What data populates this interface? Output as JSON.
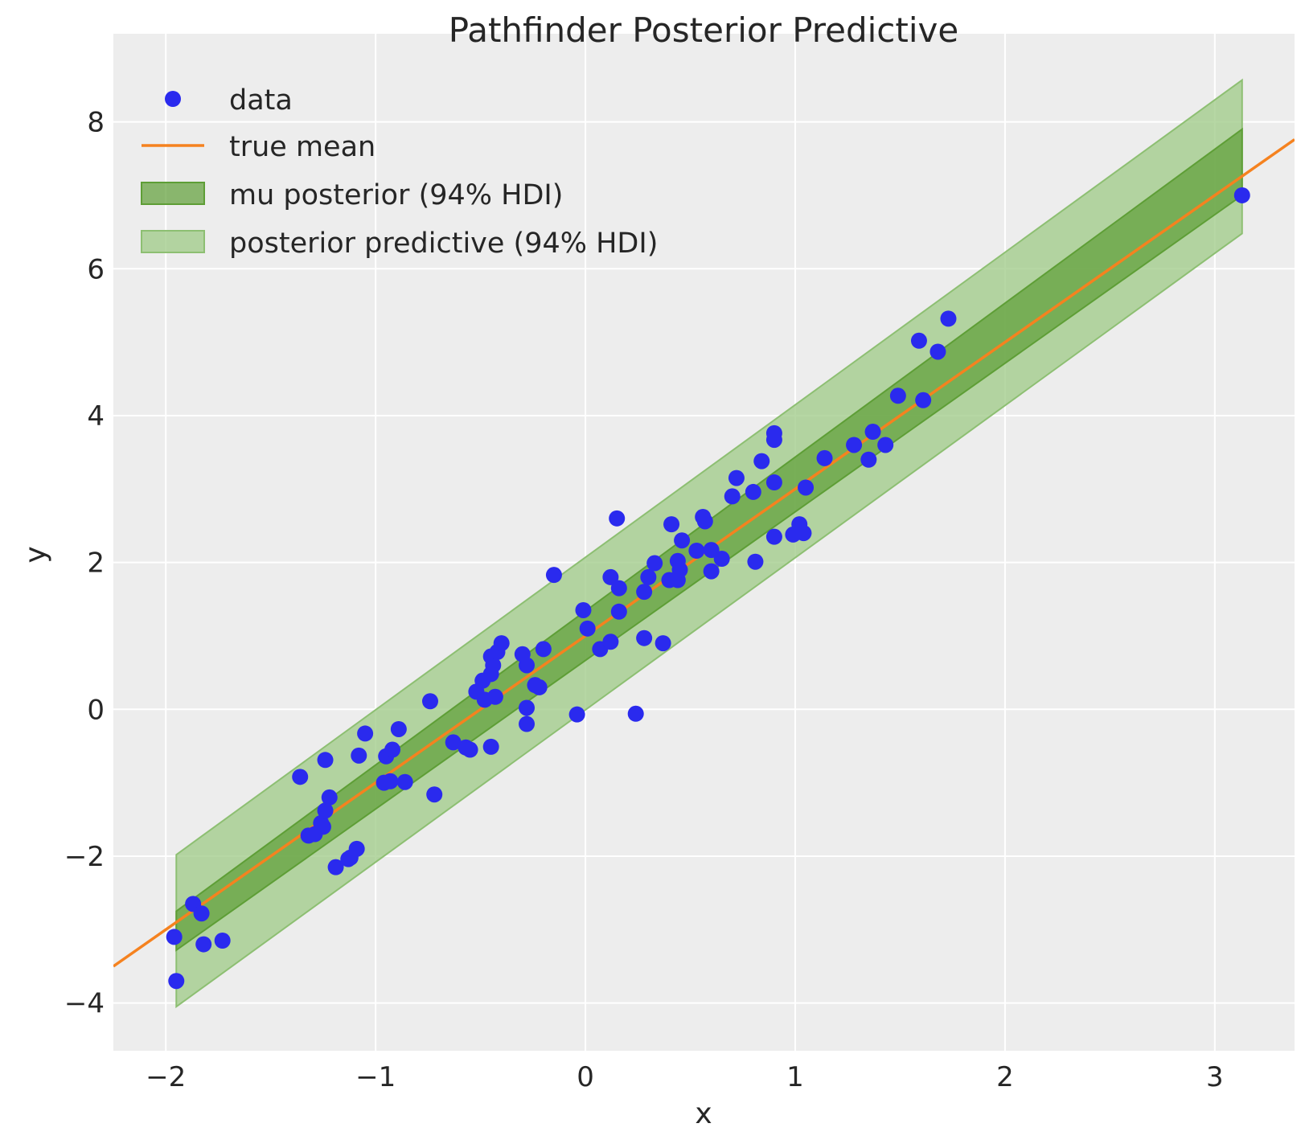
{
  "chart_data": {
    "type": "scatter",
    "title": "Pathfinder Posterior Predictive",
    "xlabel": "x",
    "ylabel": "y",
    "xlim": [
      -2.25,
      3.38
    ],
    "ylim": [
      -4.65,
      9.2
    ],
    "xticks": [
      -2,
      -1,
      0,
      1,
      2,
      3
    ],
    "yticks": [
      -4,
      -2,
      0,
      2,
      4,
      6,
      8
    ],
    "x_tick_labels": [
      "−2",
      "−1",
      "0",
      "1",
      "2",
      "3"
    ],
    "y_tick_labels": [
      "−4",
      "−2",
      "0",
      "2",
      "4",
      "6",
      "8"
    ],
    "grid": true,
    "legend_position": "top-left",
    "colors": {
      "background": "#EDEDED",
      "grid": "#FFFFFF",
      "data": "#2A2AEE",
      "true_mean": "#F5821F",
      "mu_band": "#5E9E36",
      "pp_band": "#9DCA86"
    },
    "legend": [
      {
        "label": "data",
        "kind": "point"
      },
      {
        "label": "true mean",
        "kind": "line"
      },
      {
        "label": "mu posterior (94% HDI)",
        "kind": "band-dark"
      },
      {
        "label": "posterior predictive (94% HDI)",
        "kind": "band-light"
      }
    ],
    "series": [
      {
        "name": "data",
        "points": [
          [
            -1.96,
            -3.1
          ],
          [
            -1.95,
            -3.7
          ],
          [
            -1.87,
            -2.65
          ],
          [
            -1.83,
            -2.78
          ],
          [
            -1.82,
            -3.2
          ],
          [
            -1.73,
            -3.15
          ],
          [
            -1.36,
            -0.92
          ],
          [
            -1.32,
            -1.72
          ],
          [
            -1.29,
            -1.7
          ],
          [
            -1.26,
            -1.55
          ],
          [
            -1.25,
            -1.6
          ],
          [
            -1.24,
            -1.38
          ],
          [
            -1.24,
            -0.69
          ],
          [
            -1.22,
            -1.2
          ],
          [
            -1.19,
            -2.15
          ],
          [
            -1.13,
            -2.04
          ],
          [
            -1.12,
            -2.02
          ],
          [
            -1.09,
            -1.9
          ],
          [
            -1.08,
            -0.63
          ],
          [
            -1.05,
            -0.33
          ],
          [
            -0.96,
            -1.0
          ],
          [
            -0.95,
            -0.64
          ],
          [
            -0.93,
            -0.98
          ],
          [
            -0.92,
            -0.55
          ],
          [
            -0.89,
            -0.27
          ],
          [
            -0.86,
            -0.99
          ],
          [
            -0.74,
            0.11
          ],
          [
            -0.72,
            -1.16
          ],
          [
            -0.63,
            -0.45
          ],
          [
            -0.57,
            -0.52
          ],
          [
            -0.55,
            -0.55
          ],
          [
            -0.52,
            0.24
          ],
          [
            -0.49,
            0.39
          ],
          [
            -0.48,
            0.13
          ],
          [
            -0.45,
            0.48
          ],
          [
            -0.45,
            -0.51
          ],
          [
            -0.45,
            0.72
          ],
          [
            -0.44,
            0.6
          ],
          [
            -0.43,
            0.17
          ],
          [
            -0.42,
            0.78
          ],
          [
            -0.4,
            0.9
          ],
          [
            -0.3,
            0.75
          ],
          [
            -0.28,
            0.6
          ],
          [
            -0.28,
            0.02
          ],
          [
            -0.28,
            -0.2
          ],
          [
            -0.24,
            0.33
          ],
          [
            -0.22,
            0.3
          ],
          [
            -0.2,
            0.82
          ],
          [
            -0.15,
            1.83
          ],
          [
            -0.04,
            -0.07
          ],
          [
            -0.01,
            1.35
          ],
          [
            0.01,
            1.1
          ],
          [
            0.07,
            0.82
          ],
          [
            0.12,
            0.92
          ],
          [
            0.12,
            1.8
          ],
          [
            0.15,
            2.6
          ],
          [
            0.16,
            1.33
          ],
          [
            0.16,
            1.65
          ],
          [
            0.24,
            -0.06
          ],
          [
            0.28,
            1.6
          ],
          [
            0.28,
            0.97
          ],
          [
            0.3,
            1.8
          ],
          [
            0.33,
            1.99
          ],
          [
            0.37,
            0.9
          ],
          [
            0.4,
            1.76
          ],
          [
            0.41,
            2.52
          ],
          [
            0.44,
            2.02
          ],
          [
            0.44,
            1.76
          ],
          [
            0.45,
            1.9
          ],
          [
            0.46,
            2.3
          ],
          [
            0.53,
            2.16
          ],
          [
            0.56,
            2.62
          ],
          [
            0.57,
            2.56
          ],
          [
            0.6,
            2.17
          ],
          [
            0.6,
            1.88
          ],
          [
            0.65,
            2.05
          ],
          [
            0.7,
            2.9
          ],
          [
            0.72,
            3.15
          ],
          [
            0.8,
            2.96
          ],
          [
            0.81,
            2.01
          ],
          [
            0.84,
            3.38
          ],
          [
            0.9,
            3.09
          ],
          [
            0.9,
            3.67
          ],
          [
            0.9,
            3.76
          ],
          [
            0.9,
            2.35
          ],
          [
            0.99,
            2.38
          ],
          [
            1.02,
            2.52
          ],
          [
            1.04,
            2.4
          ],
          [
            1.05,
            3.02
          ],
          [
            1.14,
            3.42
          ],
          [
            1.28,
            3.6
          ],
          [
            1.35,
            3.4
          ],
          [
            1.37,
            3.78
          ],
          [
            1.43,
            3.6
          ],
          [
            1.49,
            4.27
          ],
          [
            1.59,
            5.02
          ],
          [
            1.61,
            4.21
          ],
          [
            1.68,
            4.87
          ],
          [
            1.73,
            5.32
          ],
          [
            3.13,
            7.0
          ]
        ]
      },
      {
        "name": "true mean",
        "slope": 2.0,
        "intercept": 1.0
      },
      {
        "name": "mu posterior (94% HDI)",
        "x": [
          -1.95,
          3.13
        ],
        "lower": [
          -3.28,
          7.0
        ],
        "upper": [
          -2.75,
          7.9
        ]
      },
      {
        "name": "posterior predictive (94% HDI)",
        "x": [
          -1.95,
          3.13
        ],
        "lower": [
          -4.05,
          6.48
        ],
        "upper": [
          -1.98,
          8.57
        ]
      }
    ]
  }
}
